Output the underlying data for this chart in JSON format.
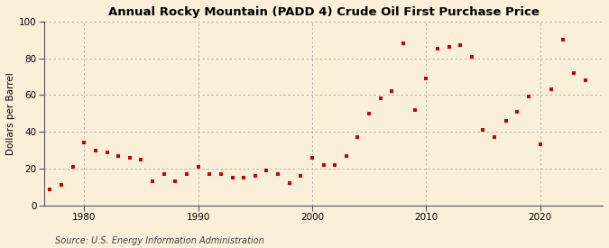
{
  "title": "Annual Rocky Mountain (PADD 4) Crude Oil First Purchase Price",
  "ylabel": "Dollars per Barrel",
  "source": "Source: U.S. Energy Information Administration",
  "background_color": "#faefd8",
  "plot_background_color": "#faefd8",
  "marker_color": "#cc0000",
  "marker": "s",
  "marker_size": 3.5,
  "xlim": [
    1976.5,
    2025.5
  ],
  "ylim": [
    0,
    100
  ],
  "yticks": [
    0,
    20,
    40,
    60,
    80,
    100
  ],
  "xticks": [
    1980,
    1990,
    2000,
    2010,
    2020
  ],
  "years": [
    1977,
    1978,
    1979,
    1980,
    1981,
    1982,
    1983,
    1984,
    1985,
    1986,
    1987,
    1988,
    1989,
    1990,
    1991,
    1992,
    1993,
    1994,
    1995,
    1996,
    1997,
    1998,
    1999,
    2000,
    2001,
    2002,
    2003,
    2004,
    2005,
    2006,
    2007,
    2008,
    2009,
    2010,
    2011,
    2012,
    2013,
    2014,
    2015,
    2016,
    2017,
    2018,
    2019,
    2020,
    2021,
    2022,
    2023,
    2024
  ],
  "values": [
    8.5,
    11,
    21,
    34,
    30,
    29,
    27,
    26,
    25,
    13,
    17,
    13,
    17,
    21,
    17,
    17,
    15,
    15,
    16,
    19,
    17,
    12,
    16,
    26,
    22,
    22,
    27,
    37,
    50,
    58,
    62,
    88,
    52,
    69,
    85,
    86,
    87,
    81,
    41,
    37,
    46,
    51,
    59,
    33,
    63,
    90,
    72,
    68
  ],
  "title_fontsize": 9.5,
  "ylabel_fontsize": 7.5,
  "tick_fontsize": 7.5,
  "source_fontsize": 7
}
